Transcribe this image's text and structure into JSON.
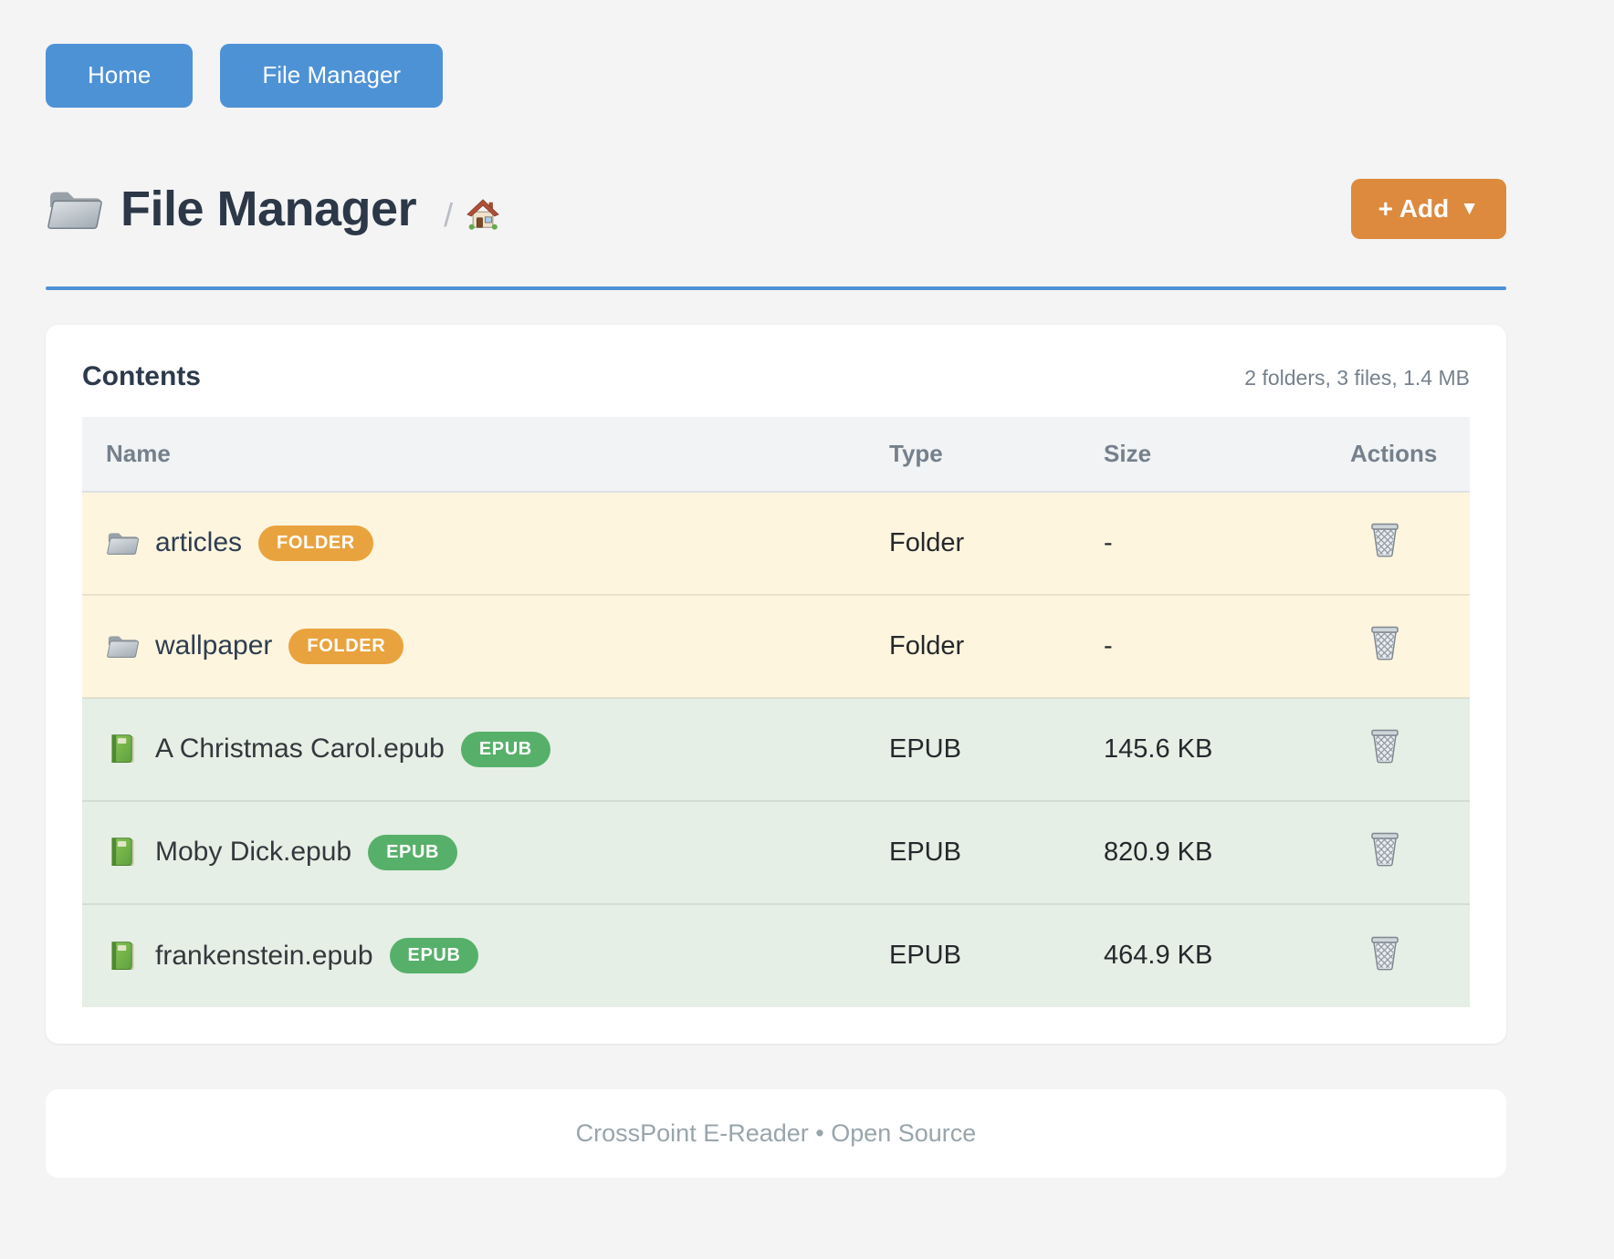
{
  "nav": {
    "home_label": "Home",
    "file_manager_label": "File Manager"
  },
  "header": {
    "title": "File Manager",
    "breadcrumb_separator": "/",
    "add_button_label": "+ Add",
    "add_button_caret": "▼"
  },
  "contents": {
    "heading": "Contents",
    "summary": "2 folders, 3 files, 1.4 MB",
    "table": {
      "columns": [
        "Name",
        "Type",
        "Size",
        "Actions"
      ],
      "rows": [
        {
          "name": "articles",
          "kind": "folder",
          "badge": "FOLDER",
          "type": "Folder",
          "size": "-"
        },
        {
          "name": "wallpaper",
          "kind": "folder",
          "badge": "FOLDER",
          "type": "Folder",
          "size": "-"
        },
        {
          "name": "A Christmas Carol.epub",
          "kind": "epub",
          "badge": "EPUB",
          "type": "EPUB",
          "size": "145.6 KB"
        },
        {
          "name": "Moby Dick.epub",
          "kind": "epub",
          "badge": "EPUB",
          "type": "EPUB",
          "size": "820.9 KB"
        },
        {
          "name": "frankenstein.epub",
          "kind": "epub",
          "badge": "EPUB",
          "type": "EPUB",
          "size": "464.9 KB"
        }
      ]
    }
  },
  "footer": {
    "text": "CrossPoint E-Reader • Open Source"
  },
  "icons": {
    "title": "folder-icon",
    "breadcrumb": "home-icon",
    "folder_row": "folder-icon",
    "epub_row": "book-icon",
    "action": "trash-icon"
  },
  "colors": {
    "accent_blue": "#4e92d6",
    "add_orange": "#dd8a3e",
    "badge_orange": "#e9a33e",
    "badge_green": "#57b06a",
    "row_folder_bg": "#fdf5de",
    "row_epub_bg": "#e5efe5"
  }
}
